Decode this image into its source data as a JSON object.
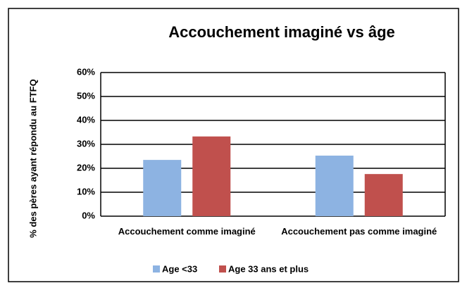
{
  "chart_data": {
    "type": "bar",
    "title": "Accouchement imaginé vs âge",
    "y_label": "% des pères ayant répondu au FTFQ",
    "categories": [
      "Accouchement comme imaginé",
      "Accouchement pas comme imaginé"
    ],
    "series": [
      {
        "name": "Age <33",
        "color": "#8db3e2",
        "values": [
          23.5,
          25.3
        ]
      },
      {
        "name": "Age 33 ans et plus",
        "color": "#c0504d",
        "values": [
          33.3,
          17.6
        ]
      }
    ],
    "ylim": [
      0,
      60
    ],
    "yticks": [
      {
        "value": 0,
        "label": "0%"
      },
      {
        "value": 10,
        "label": "10%"
      },
      {
        "value": 20,
        "label": "20%"
      },
      {
        "value": 30,
        "label": "30%"
      },
      {
        "value": 40,
        "label": "40%"
      },
      {
        "value": 50,
        "label": "50%"
      },
      {
        "value": 60,
        "label": "60%"
      }
    ],
    "grid": true,
    "legend": "bottom"
  }
}
